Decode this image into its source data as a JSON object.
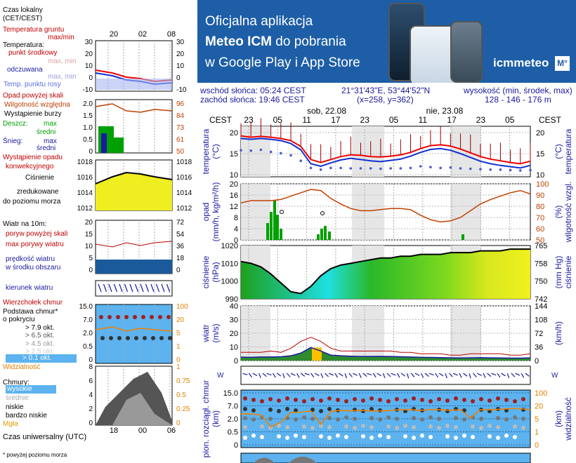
{
  "banner": {
    "line1": "Oficjalna aplikacja",
    "line2_bold": "Meteo ICM",
    "line2_rest": " do pobrania",
    "line3": "w Google Play i App Store",
    "logo_text": "icmmeteo",
    "logo_box": "M°"
  },
  "info": {
    "sunrise": "wschód słońca: 05:24 CEST",
    "sunset": "zachód słońca: 19:46 CEST",
    "coords": "21°31'43\"E, 53°44'52\"N",
    "grid": "(x=258, y=362)",
    "alt_title": "wysokość (min, środek, max)",
    "alt_values": "128 - 146 - 176 m"
  },
  "legend": {
    "local_time": "Czas lokalny",
    "local_time2": "(CET/CEST)",
    "ground_temp": "Temperatura gruntu",
    "maxmin": "max/min",
    "temperature": "Temperatura:",
    "midpoint": "punkt środkowy",
    "maxmin2": "max, min",
    "feels": "odczuwana",
    "maxmin3": "max, min",
    "dew": "Temp. punktu rosy",
    "precip_above": "Opad powyżej skali",
    "humidity": "Wilgotność względna",
    "storm": "Wystąpienie burzy",
    "rain": "Deszcz:",
    "max": "max",
    "avg": "średni",
    "snow": "Śnieg:",
    "max2": "max",
    "avg2": "średni",
    "precip_form": "Wystąpienie opadu",
    "convective": "konwekcyjnego",
    "pressure": "Ciśnienie",
    "reduced": "zredukowane",
    "sealevel": "do poziomu morza",
    "wind10": "Wiatr na 10m:",
    "gust_above": "poryw powyżej skali",
    "max_gust": "max porywy wiatru",
    "wind_speed": "prędkość wiatru",
    "area_mid": "w środku obszaru",
    "wind_dir": "kierunek wiatru",
    "cloud_top": "Wierzchołek chmur",
    "cloud_base": "Podstawa chmur*",
    "cover": "o pokryciu",
    "c79": "> 7.9 okt.",
    "c65": "> 6.5 okt.",
    "c45": "> 4.5 okt.",
    "c25": "> 2.5 okt.",
    "c01": "> 0.1 okt.",
    "visibility": "Widzialność",
    "clouds": "Chmury:",
    "high": "wysokie",
    "mid": "średnie",
    "low": "niskie",
    "vlow": "bardzo niskie",
    "fog": "Mgła",
    "utc": "Czas uniwersalny (UTC)",
    "footnote": "* powyżej poziomu morza"
  },
  "legend_axes": {
    "top_ticks": [
      "20",
      "02",
      "08"
    ],
    "bottom_ticks": [
      "18",
      "00",
      "06"
    ],
    "temp_ticks": [
      "30",
      "20",
      "10",
      "0",
      "-10"
    ],
    "precip_ticks": [
      "2.0",
      "1.5",
      "1.0",
      "0.5",
      "0"
    ],
    "hum_ticks": [
      "96",
      "84",
      "73",
      "61",
      "50"
    ],
    "press_ticks": [
      "1018",
      "1016",
      "1014",
      "1012"
    ],
    "wind_ticks": [
      "20",
      "15",
      "10",
      "5",
      "0"
    ],
    "wind_kmh_ticks": [
      "72",
      "54",
      "36",
      "18",
      "0"
    ],
    "cloud_km_ticks": [
      "15.0",
      "7.0",
      "2.0",
      "0.5",
      "0"
    ],
    "vis_ticks": [
      "100",
      "20",
      "5",
      "1",
      "0"
    ],
    "cloud_cover_ticks": [
      "8",
      "6",
      "4",
      "2",
      "0"
    ],
    "cloud_cover_right": [
      "1",
      "0.75",
      "0.5",
      "0.25",
      "0"
    ]
  },
  "chart_data": {
    "type": "line",
    "days": [
      {
        "label": "sob, 22.08",
        "hour_index": 3
      },
      {
        "label": "nie, 23.08",
        "hour_index": 9
      }
    ],
    "time_label": "CEST",
    "x": [
      "23",
      "05",
      "11",
      "17",
      "23",
      "05",
      "11",
      "17",
      "23",
      "05"
    ],
    "panels": {
      "temperature": {
        "ylabel": "temperatura (°C)",
        "ylabel_right": "temperatura (°C)",
        "ylim": [
          10,
          21
        ],
        "yticks": [
          20,
          15,
          10
        ],
        "temp_mid": [
          19.2,
          18.9,
          19.1,
          18.9,
          18.6,
          18.1,
          16.7,
          13.6,
          12.9,
          13.6,
          14.3,
          14.7,
          14.6,
          14.3,
          14.2,
          14.4,
          14.7,
          15.3,
          16.2,
          16.9,
          17.1,
          16.8,
          16.1,
          15.2,
          14.3,
          13.7,
          13.3,
          12.9,
          12.6,
          13.2
        ],
        "temp_feels": [
          18.6,
          18.4,
          18.6,
          18.4,
          18.1,
          17.4,
          15.9,
          12.6,
          12.0,
          12.8,
          13.5,
          13.9,
          13.6,
          13.3,
          13.1,
          13.4,
          13.7,
          14.4,
          15.3,
          16.0,
          16.2,
          15.8,
          15.0,
          14.1,
          13.2,
          12.6,
          12.2,
          11.9,
          11.6,
          12.2
        ],
        "dew": [
          15.8,
          15.7,
          15.9,
          15.4,
          15.1,
          14.6,
          13.3,
          11.6,
          11.2,
          11.6,
          11.6,
          11.5,
          11.5,
          11.5,
          11.4,
          11.5,
          11.5,
          11.6,
          12.0,
          11.8,
          11.6,
          11.7,
          11.5,
          11.4,
          11.3,
          11.2,
          11.2,
          11.1,
          11.0,
          11.1
        ]
      },
      "precipitation": {
        "ylabel": "opad (mm/h, kg/m²/h)",
        "ylabel_right": "wilgotność wzgl. (%)",
        "yticks": [
          20,
          16,
          12,
          8,
          4,
          0
        ],
        "yticks_right": [
          100,
          90,
          80,
          70,
          60,
          50
        ],
        "humidity": [
          83,
          85,
          85,
          85,
          86,
          89,
          92,
          95,
          94,
          87,
          82,
          78,
          76,
          76,
          77,
          78,
          78,
          77,
          72,
          68,
          66,
          67,
          70,
          76,
          82,
          86,
          89,
          92,
          94,
          91
        ],
        "rain": [
          0,
          0,
          0,
          0,
          0,
          0,
          0,
          0,
          0,
          0,
          0,
          0,
          0,
          0,
          0,
          0,
          0,
          0,
          0,
          0,
          0,
          0,
          0,
          0,
          0,
          0,
          0,
          0,
          0,
          0
        ]
      },
      "pressure": {
        "ylabel": "ciśnienie (hPa)",
        "ylabel_right": "ciśnienie (mm Hg)",
        "ylim": [
          990,
          1020
        ],
        "yticks": [
          1020,
          1010,
          1000,
          990
        ],
        "yticks_right": [
          765,
          758,
          750,
          742
        ],
        "values": [
          1011,
          1010,
          1008,
          1004,
          999,
          994,
          993,
          997,
          1003,
          1007,
          1009,
          1010,
          1011,
          1012,
          1013,
          1013,
          1014,
          1014,
          1015,
          1015,
          1015,
          1016,
          1016,
          1016,
          1017,
          1017,
          1017,
          1018,
          1018,
          1018
        ]
      },
      "wind": {
        "ylabel": "wiatr (m/s)",
        "ylabel_right": "wiatr (km/h)",
        "yticks": [
          40,
          30,
          20,
          10,
          0
        ],
        "yticks_right": [
          144,
          108,
          72,
          36,
          0
        ],
        "gust": [
          6,
          6,
          6,
          7,
          6,
          9,
          14,
          17,
          14,
          9,
          7,
          7,
          7,
          7,
          7,
          7,
          6,
          6,
          5,
          5,
          5,
          4,
          4,
          5,
          5,
          5,
          5,
          4,
          4,
          5
        ],
        "speed": [
          2.5,
          2.4,
          2.6,
          2.6,
          2.8,
          3.5,
          5.5,
          9.5,
          7.0,
          4.0,
          3.5,
          3.2,
          3.0,
          3.0,
          3.1,
          3.0,
          2.8,
          2.6,
          2.4,
          2.3,
          2.2,
          2.0,
          1.9,
          2.0,
          2.1,
          2.0,
          1.9,
          1.8,
          1.8,
          2.0
        ]
      },
      "clouds": {
        "ylabel": "pion. rozciągł. chmur (km)",
        "ylabel_right": "widzialność (km)",
        "yticks": [
          "15.0",
          "7.0",
          "2.0",
          "0.5",
          "0"
        ],
        "yticks_right": [
          "100",
          "20",
          "5",
          "1",
          "0"
        ],
        "visibility": [
          12,
          12,
          11,
          3,
          5,
          14,
          14,
          16,
          4,
          15,
          17,
          16,
          17,
          16,
          16,
          17,
          18,
          18,
          17,
          18,
          18,
          17,
          18,
          8,
          18,
          18,
          19,
          20,
          20,
          18
        ]
      }
    }
  }
}
